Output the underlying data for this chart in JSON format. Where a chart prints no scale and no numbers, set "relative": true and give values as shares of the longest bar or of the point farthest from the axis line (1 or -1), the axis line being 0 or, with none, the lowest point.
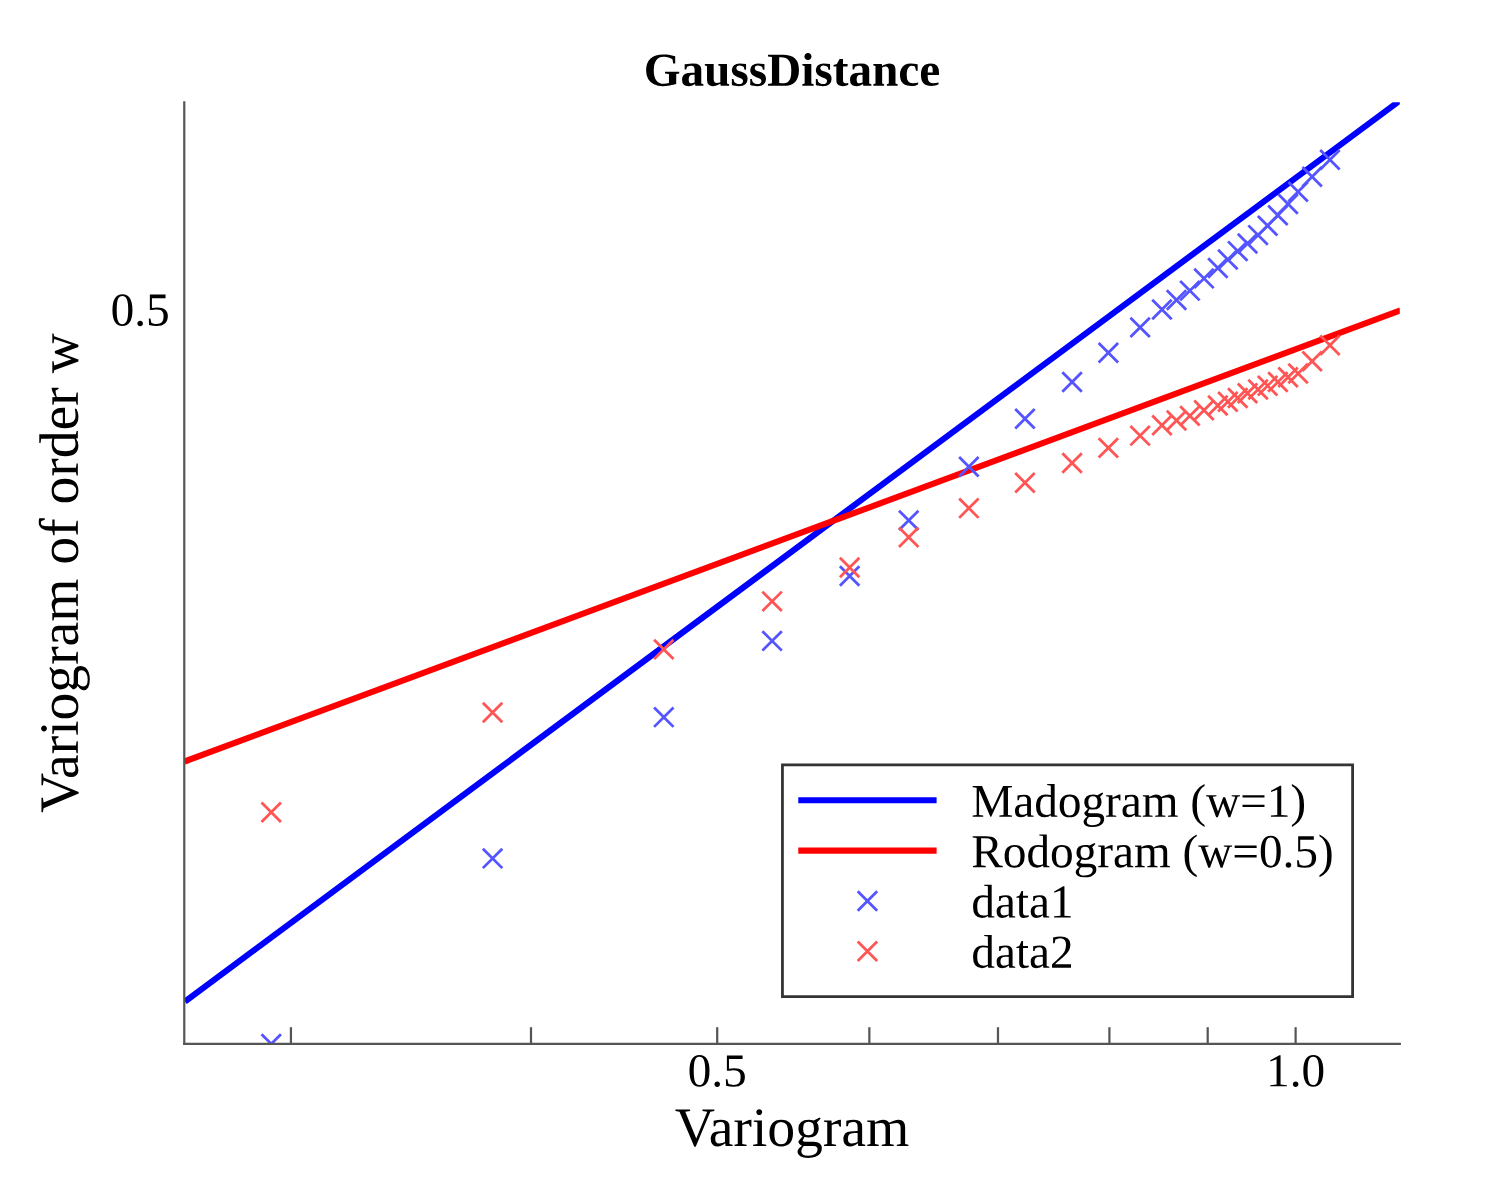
{
  "chart_data": {
    "type": "scatter",
    "title": "GaussDistance",
    "xlabel": "Variogram",
    "ylabel": "Variogram of order w",
    "log": "x",
    "grid": false,
    "legend": "bottom right",
    "relative": true,
    "annotations": [
      "0.5"
    ],
    "xlim": [
      0.264,
      1.133
    ],
    "xticks": [
      {
        "value": 0.3,
        "label": null
      },
      {
        "value": 0.4,
        "label": null
      },
      0.5,
      {
        "value": 0.6,
        "label": null
      },
      {
        "value": 0.7,
        "label": null
      },
      {
        "value": 0.8,
        "label": null
      },
      {
        "value": 0.9,
        "label": null
      },
      {
        "value": 1.0,
        "label": "1.0"
      }
    ],
    "series": [
      {
        "name": "Madogram (w=1)",
        "type": "line",
        "color": "#0000ff",
        "marker": "none",
        "line_style": "solid",
        "x": [
          0.265,
          1.13
        ],
        "values": [
          0.047,
          1.0
        ]
      },
      {
        "name": "Rodogram (w=0.5)",
        "type": "line",
        "color": "#ff0000",
        "marker": "none",
        "line_style": "solid",
        "x": [
          0.265,
          1.13
        ],
        "values": [
          0.301,
          0.778
        ]
      },
      {
        "name": "data1",
        "color": "#5555ff",
        "marker": "cross",
        "x": [
          0.293,
          0.382,
          0.469,
          0.534,
          0.586,
          0.629,
          0.676,
          0.723,
          0.765,
          0.799,
          0.83,
          0.852,
          0.867,
          0.881,
          0.896,
          0.911,
          0.922,
          0.933,
          0.944,
          0.956,
          0.967,
          0.979,
          0.991,
          1.003,
          1.02,
          1.042
        ],
        "values": [
          0.0,
          0.197,
          0.347,
          0.428,
          0.497,
          0.556,
          0.613,
          0.664,
          0.703,
          0.734,
          0.761,
          0.78,
          0.79,
          0.8,
          0.813,
          0.824,
          0.833,
          0.842,
          0.85,
          0.859,
          0.869,
          0.88,
          0.892,
          0.905,
          0.921,
          0.939
        ]
      },
      {
        "name": "data2",
        "color": "#ff5555",
        "marker": "cross",
        "x": [
          0.293,
          0.382,
          0.469,
          0.534,
          0.586,
          0.629,
          0.676,
          0.723,
          0.765,
          0.799,
          0.83,
          0.852,
          0.867,
          0.881,
          0.896,
          0.911,
          0.922,
          0.933,
          0.944,
          0.956,
          0.967,
          0.979,
          0.991,
          1.003,
          1.02,
          1.042
        ],
        "values": [
          0.246,
          0.352,
          0.419,
          0.47,
          0.506,
          0.538,
          0.569,
          0.596,
          0.617,
          0.633,
          0.646,
          0.657,
          0.662,
          0.667,
          0.673,
          0.678,
          0.682,
          0.686,
          0.691,
          0.695,
          0.699,
          0.703,
          0.708,
          0.712,
          0.725,
          0.742
        ]
      }
    ]
  }
}
